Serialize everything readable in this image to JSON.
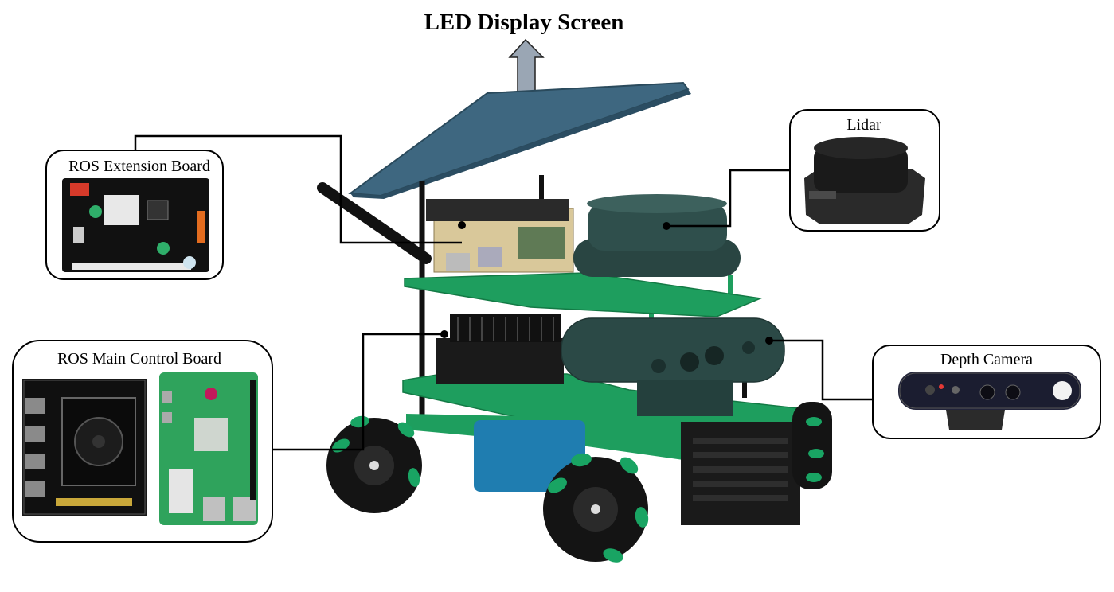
{
  "title": "LED Display Screen",
  "callouts": {
    "ros_extension_board": "ROS Extension Board",
    "ros_main_control_board": "ROS Main Control Board",
    "lidar": "Lidar",
    "depth_camera": "Depth Camera"
  },
  "colors": {
    "board_green": "#1e9e5e",
    "screen_blue": "#3e6780",
    "lidar_teal": "#2f4f4c",
    "chassis_black": "#1a1a1a",
    "wheel_accent": "#19a463",
    "battery_blue": "#1f7db0",
    "arrow_fill": "#9aa6b4"
  }
}
